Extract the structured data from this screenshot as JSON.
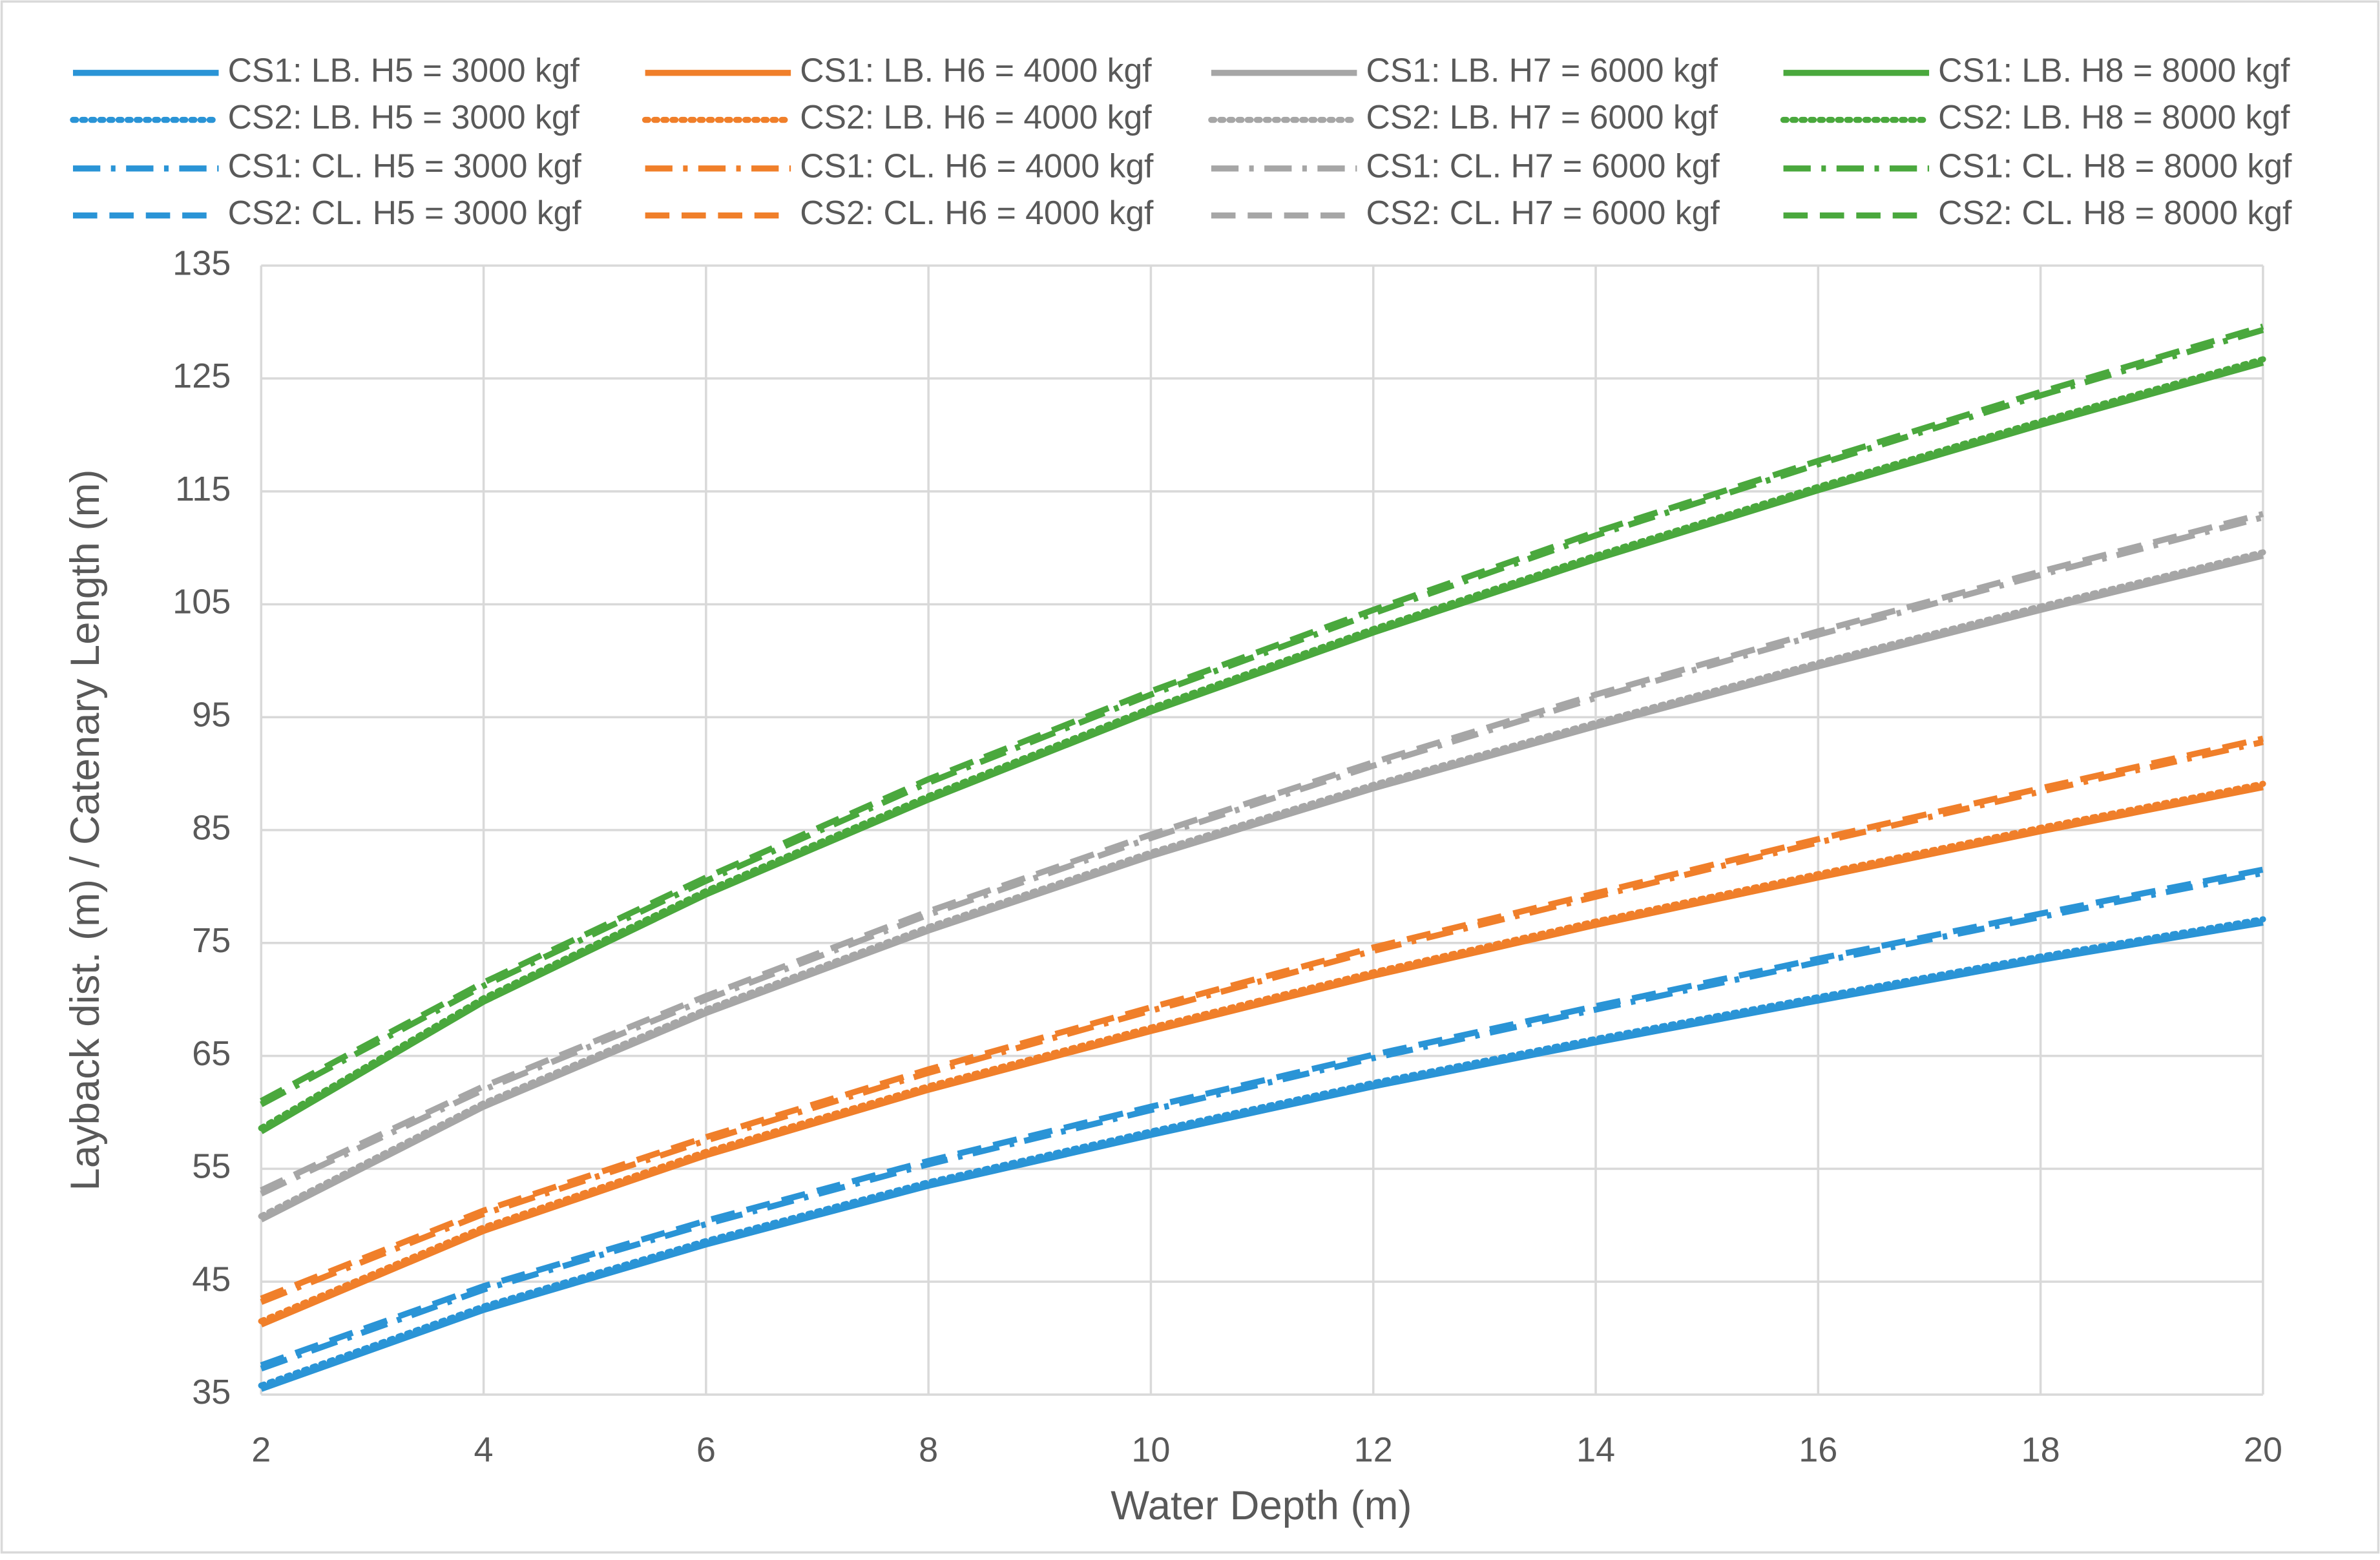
{
  "chart_data": {
    "type": "line",
    "x_label": "Water Depth (m)",
    "y_label": "Layback dist.  (m) / Catenary Length (m)",
    "x": [
      2,
      4,
      6,
      8,
      10,
      12,
      14,
      16,
      18,
      20
    ],
    "xlim": [
      2,
      20
    ],
    "xticks": [
      2,
      4,
      6,
      8,
      10,
      12,
      14,
      16,
      18,
      20
    ],
    "ylim": [
      35,
      135
    ],
    "yticks": [
      35,
      45,
      55,
      65,
      75,
      85,
      95,
      105,
      115,
      125,
      135
    ],
    "grid": true,
    "legend": "top",
    "series": [
      {
        "name": "CS1: LB. H5 = 3000 kgf",
        "color": "#2a94d6",
        "dash": "solid",
        "values": [
          35.5,
          42.5,
          48.3,
          53.5,
          58,
          62.3,
          66.2,
          69.9,
          73.5,
          76.8
        ]
      },
      {
        "name": "CS1: LB. H6 = 4000 kgf",
        "color": "#f07f2a",
        "dash": "solid",
        "values": [
          41.2,
          49.5,
          56.2,
          62,
          67.2,
          72.1,
          76.6,
          80.8,
          84.9,
          88.8
        ]
      },
      {
        "name": "CS1: LB. H7 = 6000 kgf",
        "color": "#a6a6a6",
        "dash": "solid",
        "values": [
          50.5,
          60.5,
          68.8,
          76.1,
          82.7,
          88.7,
          94.2,
          99.5,
          104.5,
          109.3
        ]
      },
      {
        "name": "CS1: LB. H8 = 8000 kgf",
        "color": "#4aa83d",
        "dash": "solid",
        "values": [
          58.3,
          69.8,
          79.3,
          87.7,
          95.5,
          102.5,
          109,
          115.1,
          120.9,
          126.4
        ]
      },
      {
        "name": "CS2: LB. H5 = 3000 kgf",
        "color": "#2a94d6",
        "dash": "dotted",
        "values": [
          35.8,
          42.8,
          48.6,
          53.8,
          58.3,
          62.6,
          66.5,
          70.2,
          73.8,
          77.1
        ]
      },
      {
        "name": "CS2: LB. H6 = 4000 kgf",
        "color": "#f07f2a",
        "dash": "dotted",
        "values": [
          41.5,
          49.8,
          56.5,
          62.3,
          67.5,
          72.4,
          76.9,
          81.1,
          85.2,
          89.1
        ]
      },
      {
        "name": "CS2: LB. H7 = 6000 kgf",
        "color": "#a6a6a6",
        "dash": "dotted",
        "values": [
          50.8,
          60.8,
          69.1,
          76.4,
          83,
          89,
          94.5,
          99.8,
          104.8,
          109.6
        ]
      },
      {
        "name": "CS2: LB. H8 = 8000 kgf",
        "color": "#4aa83d",
        "dash": "dotted",
        "values": [
          58.6,
          70.1,
          79.6,
          88,
          95.8,
          102.8,
          109.3,
          115.4,
          121.2,
          126.7
        ]
      },
      {
        "name": "CS1: CL. H5 = 3000 kgf",
        "color": "#2a94d6",
        "dash": "dash-dot",
        "values": [
          37.3,
          44.3,
          50.1,
          55.4,
          60.2,
          64.8,
          69.1,
          73.3,
          77.3,
          81.2
        ]
      },
      {
        "name": "CS1: CL. H6 = 4000 kgf",
        "color": "#f07f2a",
        "dash": "dash-dot",
        "values": [
          43.2,
          51,
          57.5,
          63.5,
          69,
          74.3,
          79.1,
          83.9,
          88.4,
          92.8
        ]
      },
      {
        "name": "CS1: CL. H7 = 6000 kgf",
        "color": "#a6a6a6",
        "dash": "dash-dot",
        "values": [
          52.8,
          62,
          70,
          77.5,
          84.3,
          90.7,
          96.7,
          102.3,
          107.6,
          112.7
        ]
      },
      {
        "name": "CS1: CL. H8 = 8000 kgf",
        "color": "#4aa83d",
        "dash": "dash-dot",
        "values": [
          60.7,
          71.2,
          80.5,
          89.2,
          97,
          104.2,
          111.1,
          117.4,
          123.5,
          129.3
        ]
      },
      {
        "name": "CS2: CL. H5 = 3000 kgf",
        "color": "#2a94d6",
        "dash": "dashed",
        "values": [
          37.6,
          44.6,
          50.4,
          55.7,
          60.5,
          65.1,
          69.4,
          73.6,
          77.6,
          81.5
        ]
      },
      {
        "name": "CS2: CL. H6 = 4000 kgf",
        "color": "#f07f2a",
        "dash": "dashed",
        "values": [
          43.5,
          51.3,
          57.8,
          63.8,
          69.3,
          74.6,
          79.4,
          84.2,
          88.7,
          93.1
        ]
      },
      {
        "name": "CS2: CL. H7 = 6000 kgf",
        "color": "#a6a6a6",
        "dash": "dashed",
        "values": [
          53.1,
          62.3,
          70.3,
          77.8,
          84.6,
          91,
          97,
          102.6,
          107.9,
          113
        ]
      },
      {
        "name": "CS2: CL. H8 = 8000 kgf",
        "color": "#4aa83d",
        "dash": "dashed",
        "values": [
          61,
          71.5,
          80.8,
          89.5,
          97.3,
          104.5,
          111.4,
          117.7,
          123.8,
          129.6
        ]
      }
    ]
  }
}
